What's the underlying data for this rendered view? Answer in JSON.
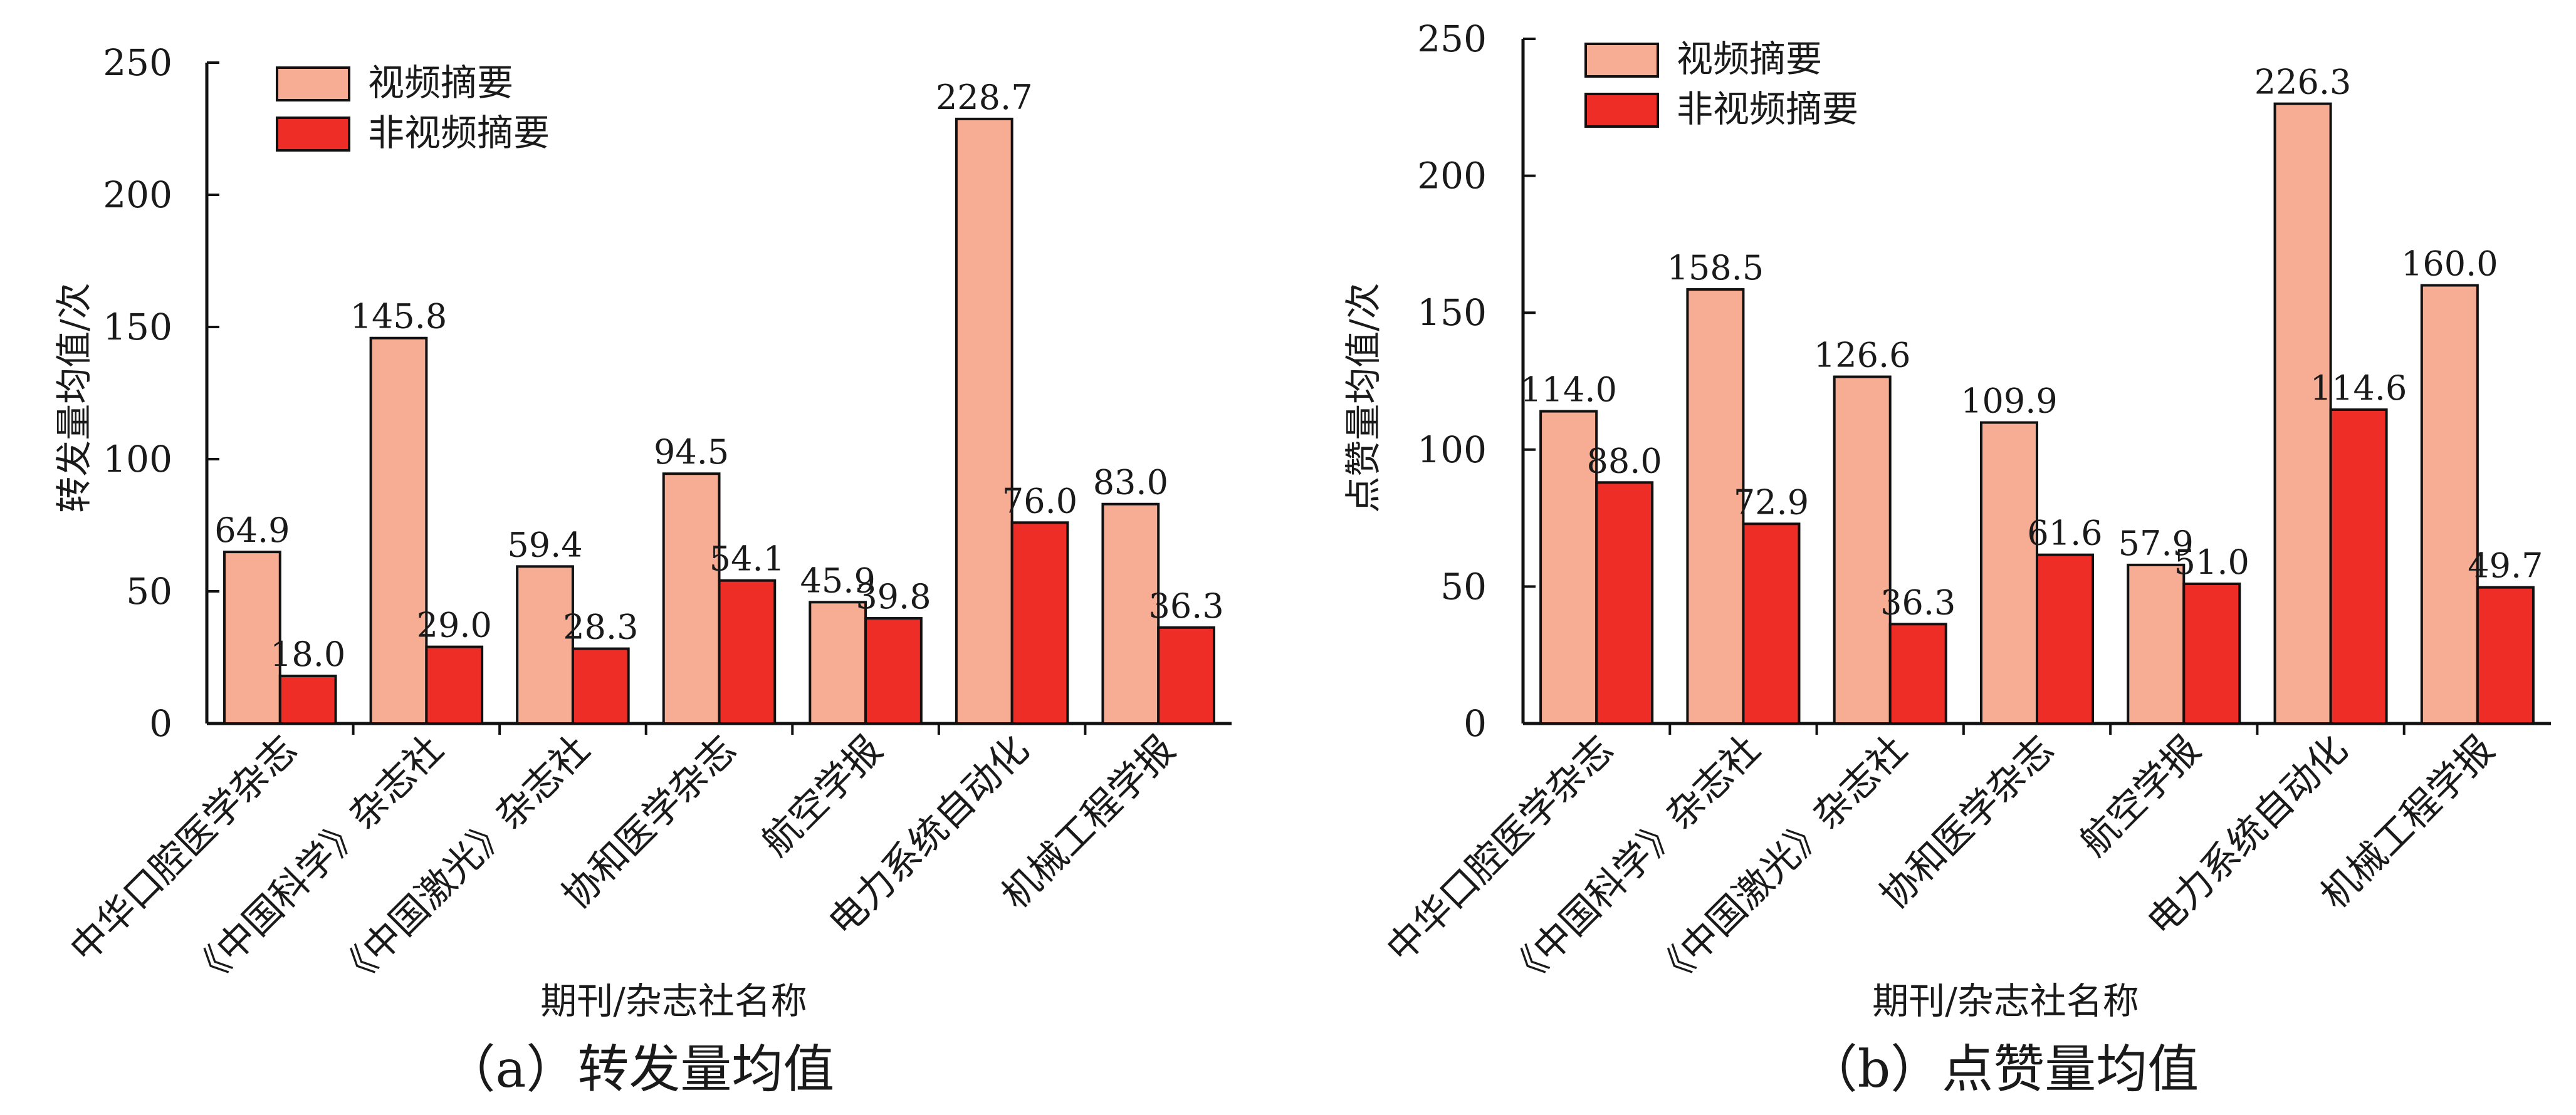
{
  "chart_data": [
    {
      "type": "bar",
      "title": "（a）转发量均值",
      "xlabel": "期刊/杂志社名称",
      "ylabel": "转发量均值/次",
      "ylim": [
        0,
        250
      ],
      "yticks": [
        0,
        50,
        100,
        150,
        200,
        250
      ],
      "categories": [
        "中华口腔医学杂志",
        "《中国科学》杂志社",
        "《中国激光》杂志社",
        "协和医学杂志",
        "航空学报",
        "电力系统自动化",
        "机械工程学报"
      ],
      "series": [
        {
          "name": "视频摘要",
          "color": "#f7ad94",
          "values": [
            64.9,
            145.8,
            59.4,
            94.5,
            45.9,
            228.7,
            83.0
          ]
        },
        {
          "name": "非视频摘要",
          "color": "#ee2d27",
          "values": [
            18.0,
            29.0,
            28.3,
            54.1,
            39.8,
            76.0,
            36.3
          ]
        }
      ],
      "legend_position": "top-left",
      "grid": false
    },
    {
      "type": "bar",
      "title": "（b）点赞量均值",
      "xlabel": "期刊/杂志社名称",
      "ylabel": "点赞量均值/次",
      "ylim": [
        0,
        250
      ],
      "yticks": [
        0,
        50,
        100,
        150,
        200,
        250
      ],
      "categories": [
        "中华口腔医学杂志",
        "《中国科学》杂志社",
        "《中国激光》杂志社",
        "协和医学杂志",
        "航空学报",
        "电力系统自动化",
        "机械工程学报"
      ],
      "series": [
        {
          "name": "视频摘要",
          "color": "#f7ad94",
          "values": [
            114.0,
            158.5,
            126.6,
            109.9,
            57.9,
            226.3,
            160.0
          ]
        },
        {
          "name": "非视频摘要",
          "color": "#ee2d27",
          "values": [
            88.0,
            72.9,
            36.3,
            61.6,
            51.0,
            114.6,
            49.7
          ]
        }
      ],
      "legend_position": "top-left",
      "grid": false
    }
  ]
}
